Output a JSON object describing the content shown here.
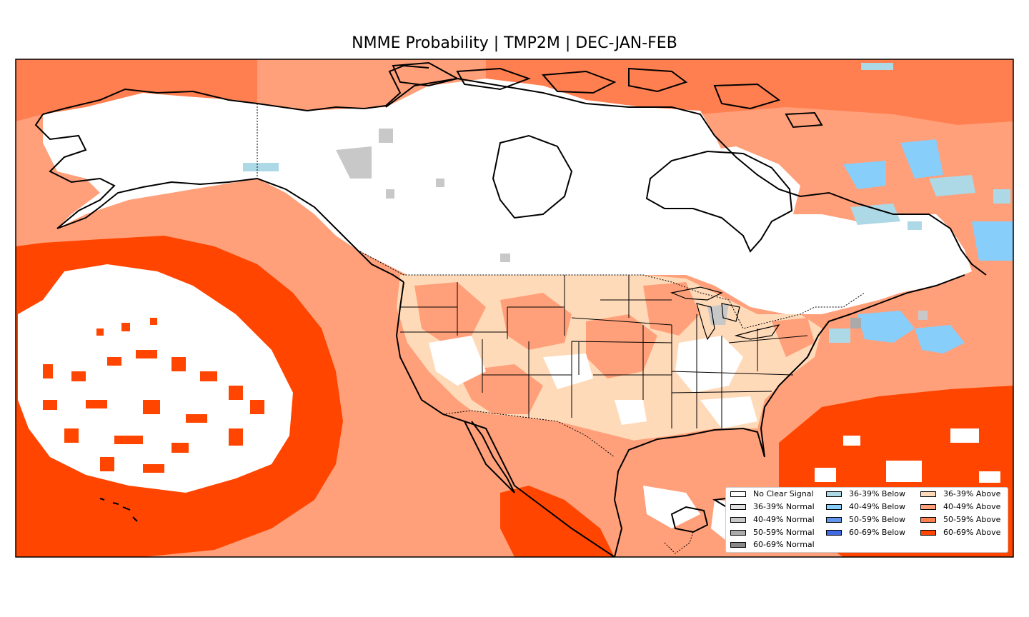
{
  "title": "NMME Probability | TMP2M | DEC-JAN-FEB",
  "colors": {
    "no_signal": "#ffffff",
    "normal_36_39": "#e0e0e0",
    "normal_40_49": "#c8c8c8",
    "normal_50_59": "#aaaaaa",
    "normal_60_69": "#888888",
    "below_36_39": "#add8e6",
    "below_40_49": "#87cefa",
    "below_50_59": "#6495ed",
    "below_60_69": "#4169e1",
    "above_36_39": "#ffdab9",
    "above_40_49": "#ffa07a",
    "above_50_59": "#ff7f50",
    "above_60_69": "#ff4500",
    "coast": "#000000"
  },
  "legend": {
    "col1": [
      {
        "label": "No Clear Signal",
        "color": "#ffffff"
      },
      {
        "label": "36-39% Normal",
        "color": "#e0e0e0"
      },
      {
        "label": "40-49% Normal",
        "color": "#c8c8c8"
      },
      {
        "label": "50-59% Normal",
        "color": "#aaaaaa"
      },
      {
        "label": "60-69% Normal",
        "color": "#888888"
      }
    ],
    "col2": [
      {
        "label": "36-39% Below",
        "color": "#add8e6"
      },
      {
        "label": "40-49% Below",
        "color": "#87cefa"
      },
      {
        "label": "50-59% Below",
        "color": "#6495ed"
      },
      {
        "label": "60-69% Below",
        "color": "#4169e1"
      }
    ],
    "col3": [
      {
        "label": "36-39% Above",
        "color": "#ffdab9"
      },
      {
        "label": "40-49% Above",
        "color": "#ffa07a"
      },
      {
        "label": "50-59% Above",
        "color": "#ff7f50"
      },
      {
        "label": "60-69% Above",
        "color": "#ff4500"
      }
    ]
  }
}
